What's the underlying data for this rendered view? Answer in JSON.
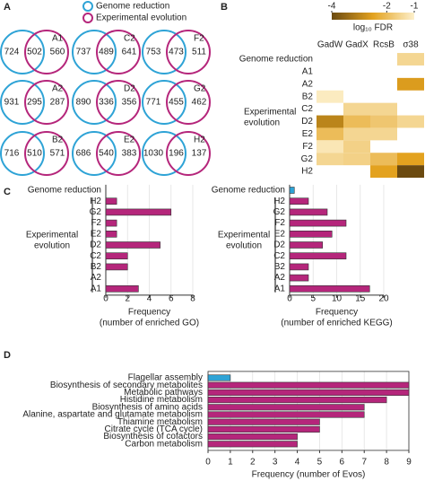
{
  "chart_data": [
    {
      "type": "venn",
      "panel": "A",
      "legend": [
        {
          "name": "Genome reduction",
          "color": "#2ea3d6"
        },
        {
          "name": "Experimental evolution",
          "color": "#b5267b"
        }
      ],
      "sets": [
        {
          "label": "A1",
          "values": [
            724,
            502,
            560
          ]
        },
        {
          "label": "C2",
          "values": [
            737,
            489,
            641
          ]
        },
        {
          "label": "F2",
          "values": [
            753,
            473,
            511
          ]
        },
        {
          "label": "A2",
          "values": [
            931,
            295,
            287
          ]
        },
        {
          "label": "D2",
          "values": [
            890,
            336,
            356
          ]
        },
        {
          "label": "G2",
          "values": [
            771,
            455,
            462
          ]
        },
        {
          "label": "B2",
          "values": [
            716,
            510,
            571
          ]
        },
        {
          "label": "E2",
          "values": [
            686,
            540,
            383
          ]
        },
        {
          "label": "H2",
          "values": [
            1030,
            196,
            137
          ]
        }
      ]
    },
    {
      "type": "heatmap",
      "panel": "B",
      "columns": [
        "GadW",
        "GadX",
        "RcsB",
        "σ38"
      ],
      "rows": [
        "Genome reduction",
        "A1",
        "A2",
        "B2",
        "C2",
        "D2",
        "E2",
        "F2",
        "G2",
        "H2"
      ],
      "group_label": [
        "Experimental",
        "evolution"
      ],
      "values": [
        [
          null,
          null,
          null,
          -1.5
        ],
        [
          null,
          null,
          null,
          null
        ],
        [
          null,
          null,
          null,
          -2.6
        ],
        [
          -1.1,
          null,
          null,
          null
        ],
        [
          null,
          -1.5,
          -1.5,
          null
        ],
        [
          -3.0,
          -2.0,
          -1.8,
          -1.5
        ],
        [
          -2.0,
          -1.5,
          -1.5,
          null
        ],
        [
          -1.2,
          -1.6,
          null,
          null
        ],
        [
          -1.5,
          -1.6,
          -2.0,
          -2.5
        ],
        [
          null,
          null,
          -2.5,
          -4.0
        ]
      ],
      "clim": [
        -4,
        -1
      ],
      "cticks": [
        -4,
        -2,
        -1
      ],
      "clabel": "log₁₀ FDR",
      "colormap": [
        "#6b4a10",
        "#e3a21f",
        "#fdf0cc"
      ]
    },
    {
      "type": "barh",
      "panel": "C",
      "categories": [
        "Genome reduction",
        "H2",
        "G2",
        "F2",
        "E2",
        "D2",
        "C2",
        "B2",
        "A2",
        "A1"
      ],
      "values": [
        0,
        1,
        6,
        1,
        1,
        5,
        2,
        2,
        0,
        3
      ],
      "colors": [
        "#2ea3d6",
        "#b5267b",
        "#b5267b",
        "#b5267b",
        "#b5267b",
        "#b5267b",
        "#b5267b",
        "#b5267b",
        "#b5267b",
        "#b5267b"
      ],
      "group_label": [
        "Experimental",
        "evolution"
      ],
      "xlim": [
        0,
        8
      ],
      "xticks": [
        0,
        2,
        4,
        6,
        8
      ],
      "grid": true,
      "xlabel": [
        "Frequency",
        "(number of enriched GO)"
      ]
    },
    {
      "type": "barh",
      "categories": [
        "Genome reduction",
        "H2",
        "G2",
        "F2",
        "E2",
        "D2",
        "C2",
        "B2",
        "A2",
        "A1"
      ],
      "values": [
        1,
        4,
        8,
        12,
        9,
        7,
        12,
        4,
        4,
        17
      ],
      "colors": [
        "#2ea3d6",
        "#b5267b",
        "#b5267b",
        "#b5267b",
        "#b5267b",
        "#b5267b",
        "#b5267b",
        "#b5267b",
        "#b5267b",
        "#b5267b"
      ],
      "group_label": [
        "Experimental",
        "evolution"
      ],
      "xlim": [
        0,
        20
      ],
      "xticks": [
        0,
        5,
        10,
        15,
        20
      ],
      "grid": true,
      "xlabel": [
        "Frequency",
        "(number of enriched KEGG)"
      ]
    },
    {
      "type": "barh",
      "panel": "D",
      "categories": [
        "Flagellar assembly",
        "Biosynthesis of secondary metabolites",
        "Metabolic pathways",
        "Histidine metabolism",
        "Biosynthesis of amino acids",
        "Alanine, aspartate and glutamate metabolism",
        "Thiamine metabolism",
        "Citrate cycle (TCA cycle)",
        "Biosynthesis of cofactors",
        "Carbon metabolism"
      ],
      "values": [
        1,
        9,
        9,
        8,
        7,
        7,
        5,
        5,
        4,
        4
      ],
      "colors": [
        "#2ea3d6",
        "#b5267b",
        "#b5267b",
        "#b5267b",
        "#b5267b",
        "#b5267b",
        "#b5267b",
        "#b5267b",
        "#b5267b",
        "#b5267b"
      ],
      "xlim": [
        0,
        9
      ],
      "xticks": [
        0,
        1,
        2,
        3,
        4,
        5,
        6,
        7,
        8,
        9
      ],
      "grid": true,
      "frame": true,
      "xlabel": [
        "Frequency (number of Evos)"
      ]
    }
  ]
}
